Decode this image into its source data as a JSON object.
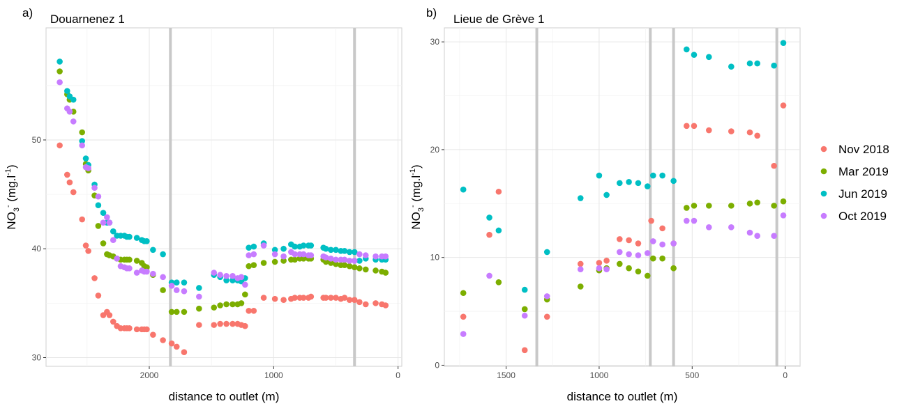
{
  "legend": {
    "entries": [
      {
        "name": "Nov 2018",
        "color": "#F8766D"
      },
      {
        "name": "Mar 2019",
        "color": "#7CAE00"
      },
      {
        "name": "Jun 2019",
        "color": "#00BFC4"
      },
      {
        "name": "Oct 2019",
        "color": "#C77CFF"
      }
    ]
  },
  "chart_data": [
    {
      "type": "scatter",
      "panel_label": "a)",
      "title": "Douarnenez 1",
      "xlabel": "distance to outlet (m)",
      "ylabel_main": "NO",
      "ylabel_sub": "3",
      "ylabel_sup": "-",
      "ylabel_unit_main": " (mg.l",
      "ylabel_unit_sup": "-1",
      "ylabel_unit_end": ")",
      "x_reversed": true,
      "xlim": [
        2830,
        -30
      ],
      "ylim": [
        29.2,
        60.3
      ],
      "xticks": [
        2000,
        1000,
        0
      ],
      "xtick_labels": [
        "2000",
        "1000",
        "0"
      ],
      "yticks": [
        30,
        40,
        50
      ],
      "ytick_labels": [
        "30",
        "40",
        "50"
      ],
      "grid": true,
      "vertical_lines_x": [
        1830,
        350
      ],
      "series": [
        {
          "name": "Nov 2018",
          "color": "#F8766D",
          "x": [
            2720,
            2660,
            2640,
            2610,
            2540,
            2510,
            2490,
            2440,
            2410,
            2370,
            2340,
            2320,
            2290,
            2260,
            2230,
            2200,
            2180,
            2160,
            2100,
            2060,
            2040,
            2020,
            1970,
            1890,
            1820,
            1780,
            1720,
            1600,
            1480,
            1430,
            1380,
            1330,
            1290,
            1260,
            1230,
            1200,
            1160,
            1080,
            990,
            920,
            860,
            830,
            790,
            760,
            720,
            700,
            600,
            580,
            540,
            500,
            460,
            430,
            390,
            350,
            310,
            260,
            180,
            130,
            100
          ],
          "y": [
            49.5,
            46.8,
            46.1,
            45.2,
            42.7,
            40.3,
            39.8,
            37.3,
            35.7,
            33.9,
            34.2,
            33.9,
            33.3,
            32.9,
            32.7,
            32.7,
            32.7,
            32.7,
            32.6,
            32.6,
            32.6,
            32.6,
            32.1,
            31.6,
            31.3,
            31.0,
            30.5,
            33.0,
            33.0,
            33.1,
            33.1,
            33.1,
            33.1,
            33.0,
            32.9,
            34.3,
            34.3,
            35.5,
            35.4,
            35.3,
            35.4,
            35.5,
            35.5,
            35.5,
            35.5,
            35.6,
            35.5,
            35.5,
            35.5,
            35.5,
            35.4,
            35.5,
            35.3,
            35.3,
            35.1,
            34.9,
            35.0,
            34.9,
            34.8
          ]
        },
        {
          "name": "Mar 2019",
          "color": "#7CAE00",
          "x": [
            2720,
            2660,
            2640,
            2610,
            2540,
            2510,
            2490,
            2440,
            2410,
            2370,
            2340,
            2320,
            2290,
            2260,
            2230,
            2200,
            2180,
            2160,
            2100,
            2060,
            2040,
            2020,
            1970,
            1890,
            1820,
            1780,
            1720,
            1600,
            1480,
            1430,
            1380,
            1330,
            1290,
            1260,
            1230,
            1200,
            1160,
            1080,
            990,
            920,
            860,
            830,
            790,
            760,
            720,
            700,
            600,
            580,
            540,
            500,
            460,
            430,
            390,
            350,
            310,
            260,
            180,
            130,
            100
          ],
          "y": [
            56.3,
            54.2,
            53.7,
            52.6,
            50.7,
            47.8,
            47.2,
            44.9,
            42.1,
            40.5,
            39.5,
            39.4,
            39.3,
            39.1,
            39.0,
            39.0,
            39.0,
            39.0,
            38.9,
            38.7,
            38.4,
            38.3,
            37.6,
            36.2,
            34.2,
            34.2,
            34.2,
            34.5,
            34.6,
            34.8,
            34.9,
            34.9,
            34.9,
            35.0,
            35.8,
            38.4,
            38.5,
            38.7,
            38.8,
            38.9,
            39.0,
            39.0,
            39.1,
            39.1,
            39.1,
            39.1,
            39.0,
            38.8,
            38.7,
            38.6,
            38.5,
            38.5,
            38.4,
            38.3,
            38.2,
            38.1,
            38.0,
            37.9,
            37.8
          ]
        },
        {
          "name": "Jun 2019",
          "color": "#00BFC4",
          "x": [
            2720,
            2660,
            2640,
            2610,
            2540,
            2510,
            2490,
            2440,
            2410,
            2370,
            2340,
            2320,
            2290,
            2260,
            2230,
            2200,
            2180,
            2160,
            2100,
            2060,
            2040,
            2020,
            1970,
            1890,
            1820,
            1780,
            1720,
            1600,
            1480,
            1430,
            1380,
            1330,
            1290,
            1260,
            1230,
            1200,
            1160,
            1080,
            990,
            920,
            860,
            830,
            790,
            760,
            720,
            700,
            600,
            580,
            540,
            500,
            460,
            430,
            390,
            350,
            310,
            260,
            180,
            130,
            100
          ],
          "y": [
            57.2,
            54.5,
            54.0,
            53.7,
            49.9,
            48.3,
            47.7,
            45.9,
            44.0,
            43.3,
            42.4,
            42.4,
            41.6,
            41.2,
            41.2,
            41.2,
            41.1,
            41.1,
            41.0,
            40.8,
            40.7,
            40.7,
            39.9,
            39.5,
            36.9,
            36.9,
            36.9,
            36.4,
            37.6,
            37.4,
            37.1,
            37.1,
            37.1,
            37.0,
            37.3,
            40.1,
            40.2,
            40.5,
            39.9,
            40.0,
            40.4,
            40.2,
            40.2,
            40.3,
            40.3,
            40.3,
            40.1,
            40.0,
            39.9,
            39.9,
            39.8,
            39.8,
            39.7,
            39.7,
            38.9,
            39.1,
            39.0,
            39.0,
            39.0
          ]
        },
        {
          "name": "Oct 2019",
          "color": "#C77CFF",
          "x": [
            2720,
            2660,
            2640,
            2610,
            2540,
            2510,
            2490,
            2440,
            2410,
            2370,
            2340,
            2320,
            2290,
            2260,
            2230,
            2200,
            2180,
            2160,
            2100,
            2060,
            2040,
            2020,
            1970,
            1890,
            1820,
            1780,
            1720,
            1600,
            1480,
            1430,
            1380,
            1330,
            1290,
            1260,
            1230,
            1200,
            1160,
            1080,
            990,
            920,
            860,
            830,
            790,
            760,
            720,
            700,
            600,
            580,
            540,
            500,
            460,
            430,
            390,
            350,
            310,
            260,
            180,
            130,
            100
          ],
          "y": [
            55.3,
            52.9,
            52.6,
            51.7,
            49.5,
            47.5,
            47.4,
            45.6,
            44.8,
            42.4,
            42.9,
            42.4,
            40.8,
            39.1,
            38.4,
            38.3,
            38.2,
            38.2,
            37.8,
            38.0,
            37.9,
            37.9,
            37.7,
            37.4,
            36.6,
            36.2,
            36.1,
            35.6,
            37.8,
            37.6,
            37.5,
            37.5,
            37.3,
            37.4,
            36.7,
            39.4,
            39.5,
            40.3,
            39.5,
            39.3,
            39.7,
            39.5,
            39.5,
            39.5,
            39.4,
            39.4,
            39.3,
            39.2,
            39.1,
            39.0,
            39.0,
            39.0,
            38.9,
            38.9,
            39.5,
            39.4,
            39.3,
            39.3,
            39.3
          ]
        }
      ]
    },
    {
      "type": "scatter",
      "panel_label": "b)",
      "title": "Lieue de Grève 1",
      "xlabel": "distance to outlet (m)",
      "ylabel_main": "NO",
      "ylabel_sub": "3",
      "ylabel_sup": "-",
      "ylabel_unit_main": " (mg.l",
      "ylabel_unit_sup": "-1",
      "ylabel_unit_end": ")",
      "x_reversed": true,
      "xlim": [
        1832,
        -80
      ],
      "ylim": [
        -0.1,
        31.3
      ],
      "xticks": [
        1500,
        1000,
        500,
        0
      ],
      "xtick_labels": [
        "1500",
        "1000",
        "500",
        "0"
      ],
      "yticks": [
        0,
        10,
        20,
        30
      ],
      "ytick_labels": [
        "0",
        "10",
        "20",
        "30"
      ],
      "grid": true,
      "vertical_lines_x": [
        1335,
        725,
        600,
        45
      ],
      "series": [
        {
          "name": "Nov 2018",
          "color": "#F8766D",
          "x": [
            1730,
            1590,
            1540,
            1400,
            1280,
            1100,
            1000,
            960,
            890,
            840,
            790,
            720,
            660,
            600,
            530,
            490,
            410,
            290,
            190,
            150,
            60,
            10
          ],
          "y": [
            4.5,
            12.1,
            16.1,
            1.4,
            4.5,
            9.4,
            9.5,
            9.7,
            11.7,
            11.6,
            11.3,
            13.4,
            12.7,
            11.3,
            22.2,
            22.2,
            21.8,
            21.7,
            21.6,
            21.3,
            18.5,
            24.1
          ]
        },
        {
          "name": "Mar 2019",
          "color": "#7CAE00",
          "x": [
            1730,
            1540,
            1400,
            1280,
            1100,
            1000,
            960,
            890,
            840,
            790,
            740,
            710,
            660,
            600,
            530,
            490,
            410,
            290,
            190,
            150,
            60,
            10
          ],
          "y": [
            6.7,
            7.7,
            5.2,
            6.1,
            7.3,
            8.8,
            9.0,
            9.4,
            9.0,
            8.7,
            8.3,
            9.9,
            9.9,
            9.0,
            14.6,
            14.8,
            14.8,
            14.8,
            15.0,
            15.1,
            14.8,
            15.2
          ]
        },
        {
          "name": "Jun 2019",
          "color": "#00BFC4",
          "x": [
            1730,
            1590,
            1540,
            1400,
            1280,
            1100,
            1000,
            960,
            890,
            840,
            790,
            740,
            710,
            660,
            600,
            530,
            490,
            410,
            290,
            190,
            150,
            60,
            10
          ],
          "y": [
            16.3,
            13.7,
            12.5,
            7.0,
            10.5,
            15.5,
            17.6,
            15.8,
            16.9,
            17.0,
            16.9,
            16.6,
            17.6,
            17.6,
            17.1,
            29.3,
            28.8,
            28.6,
            27.7,
            28.0,
            28.0,
            27.8,
            29.9
          ]
        },
        {
          "name": "Oct 2019",
          "color": "#C77CFF",
          "x": [
            1730,
            1590,
            1400,
            1280,
            1100,
            1000,
            960,
            890,
            840,
            790,
            740,
            710,
            660,
            600,
            530,
            490,
            410,
            290,
            190,
            150,
            60,
            10
          ],
          "y": [
            2.9,
            8.3,
            4.6,
            6.4,
            8.9,
            9.0,
            8.9,
            10.5,
            10.3,
            10.2,
            10.4,
            11.5,
            11.2,
            11.3,
            13.4,
            13.4,
            12.8,
            12.8,
            12.3,
            12.0,
            12.0,
            13.9
          ]
        }
      ]
    }
  ]
}
